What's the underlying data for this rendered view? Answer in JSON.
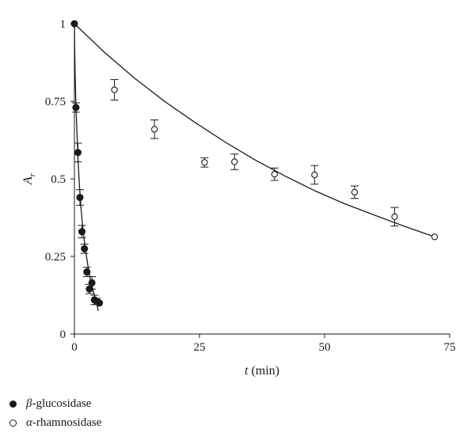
{
  "chart_data": {
    "type": "scatter",
    "title": "",
    "xlabel_var": "t",
    "xlabel_unit": "(min)",
    "ylabel_var": "A",
    "ylabel_sub": "r",
    "xlim": [
      0,
      75
    ],
    "ylim": [
      0,
      1
    ],
    "xticks": [
      0,
      25,
      50,
      75
    ],
    "xtick_labels": [
      "0",
      "25",
      "50",
      "75"
    ],
    "yticks": [
      0,
      0.25,
      0.5,
      0.75,
      1
    ],
    "ytick_labels": [
      "0",
      "0.25",
      "0.5",
      "0.75",
      "1"
    ],
    "grid": false,
    "legend_position": "bottom-left",
    "series": [
      {
        "name": "β-glucosidase",
        "greek": "β",
        "suffix": "-glucosidase",
        "marker": "filled-circle",
        "x": [
          0,
          0.3,
          0.7,
          1.1,
          1.5,
          2.0,
          2.5,
          3.0,
          3.5,
          4.0,
          4.5,
          5.0
        ],
        "y": [
          1.0,
          0.73,
          0.585,
          0.44,
          0.33,
          0.275,
          0.2,
          0.145,
          0.165,
          0.11,
          0.105,
          0.1
        ],
        "err": [
          0,
          0.015,
          0.03,
          0.025,
          0.02,
          0.015,
          0.015,
          0.015,
          0.02,
          0.015,
          0.01,
          0.0
        ],
        "fit": {
          "x": [
            0,
            0.05,
            0.15,
            0.3,
            0.5,
            0.7,
            1.0,
            1.3,
            1.6,
            2.0,
            2.4,
            2.8,
            3.2,
            3.6,
            4.0,
            4.4,
            4.8
          ],
          "y": [
            1.0,
            0.93,
            0.84,
            0.74,
            0.65,
            0.57,
            0.48,
            0.41,
            0.355,
            0.3,
            0.25,
            0.21,
            0.175,
            0.15,
            0.125,
            0.1,
            0.075
          ]
        }
      },
      {
        "name": "α-rhamnosidase",
        "greek": "α",
        "suffix": "-rhamnosidase",
        "marker": "open-circle",
        "x": [
          8,
          16,
          26,
          32,
          40,
          48,
          56,
          64,
          72
        ],
        "y": [
          0.787,
          0.66,
          0.553,
          0.555,
          0.515,
          0.513,
          0.457,
          0.378,
          0.313
        ],
        "err": [
          0.033,
          0.03,
          0.015,
          0.025,
          0.02,
          0.03,
          0.02,
          0.03,
          0.0
        ],
        "fit": {
          "x": [
            0,
            6,
            12,
            18,
            24,
            30,
            36,
            42,
            48,
            54,
            60,
            66,
            72
          ],
          "y": [
            1.0,
            0.908,
            0.825,
            0.75,
            0.683,
            0.62,
            0.562,
            0.51,
            0.462,
            0.42,
            0.383,
            0.347,
            0.313
          ]
        }
      }
    ]
  }
}
